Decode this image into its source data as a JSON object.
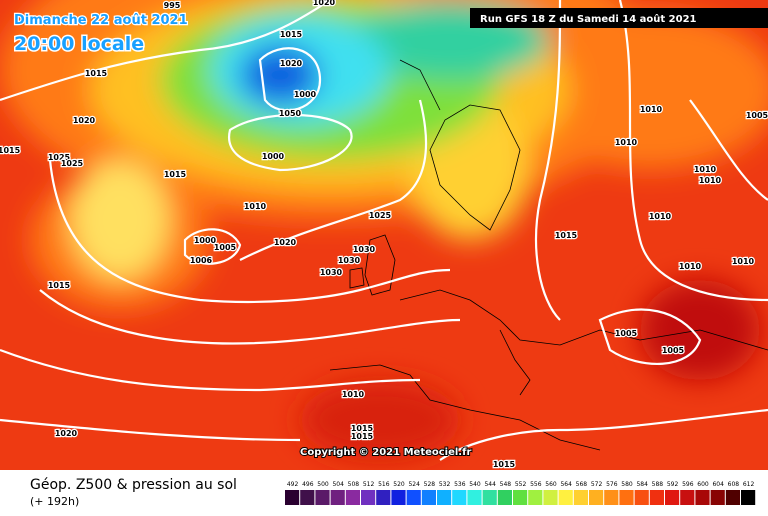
{
  "header": {
    "date": "Dimanche 22 août 2021",
    "time": "20:00 locale",
    "run": "Run GFS 18 Z du Samedi 14 août 2021"
  },
  "map": {
    "copyright": "Copyright © 2021 Meteociel.fr",
    "isobar_labels": [
      "995",
      "1020",
      "1015",
      "1020",
      "1015",
      "1000",
      "1050",
      "1020",
      "1015",
      "1025",
      "1025",
      "1000",
      "1015",
      "1010",
      "1010",
      "1005",
      "1010",
      "1010",
      "1010",
      "1010",
      "1025",
      "1000",
      "1005",
      "1006",
      "1020",
      "1030",
      "1030",
      "1030",
      "1015",
      "1010",
      "1010",
      "1015",
      "1005",
      "1005",
      "1010",
      "1020",
      "1015",
      "1015",
      "1015"
    ]
  },
  "footer": {
    "title": "Géop. Z500 & pression au sol",
    "lead": "(+ 192h)",
    "scale": [
      492,
      496,
      500,
      504,
      508,
      512,
      516,
      520,
      524,
      528,
      532,
      536,
      540,
      544,
      548,
      552,
      556,
      560,
      564,
      568,
      572,
      576,
      580,
      584,
      588,
      592,
      596,
      600,
      604,
      608,
      612
    ]
  }
}
